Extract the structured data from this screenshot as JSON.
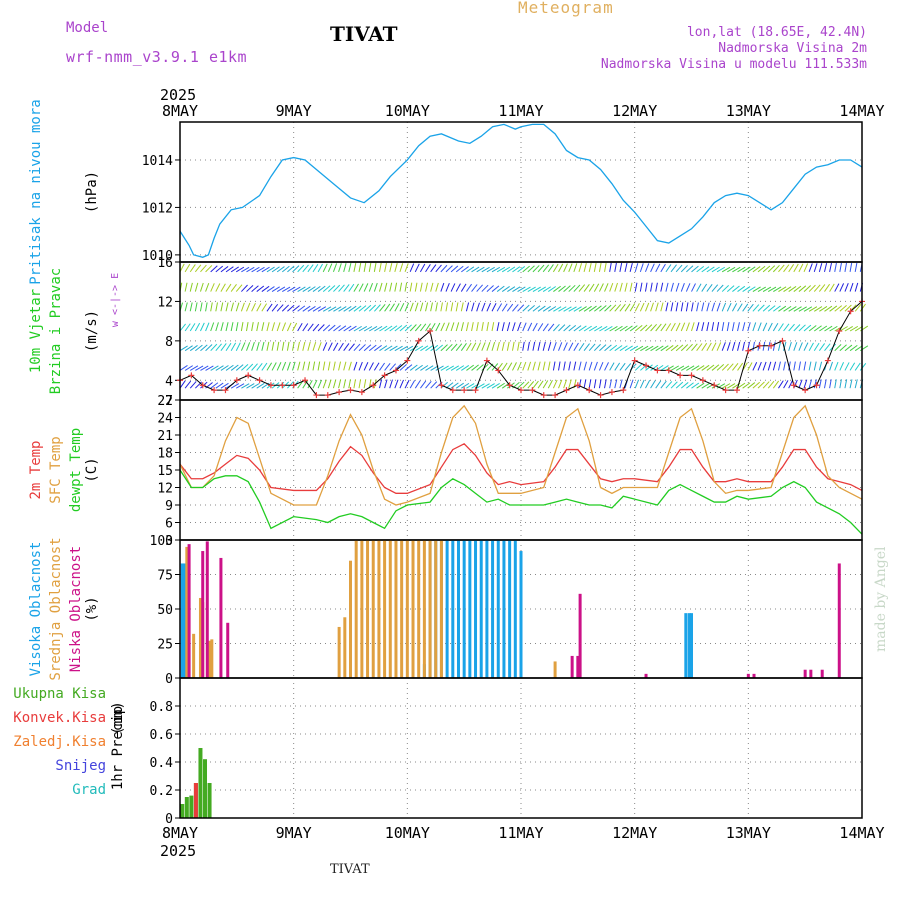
{
  "header": {
    "title": "TIVAT",
    "model_label": "Model",
    "model_value": "wrf-nmm_v3.9.1 e1km",
    "meteogram_label": "Meteogram",
    "location_line": "lon,lat (18.65E, 42.4N)",
    "elevation_line": "Nadmorska Visina 2m",
    "model_elevation_line": "Nadmorska Visina u modelu 111.533m",
    "footer_title": "TIVAT",
    "credit": "made by Angel"
  },
  "colors": {
    "pressure": "#1aa3e8",
    "temp_2m": "#e83c3c",
    "sfc_temp": "#e0a040",
    "dewpt": "#22cc22",
    "high_cloud": "#1aa3e8",
    "mid_cloud": "#e0a040",
    "low_cloud": "#cc1188",
    "total_precip": "#44aa22",
    "conv_precip": "#e83c3c",
    "freezing_precip": "#f08030",
    "snow": "#4444dd",
    "graupel": "#22bbbb",
    "wind_axis_label": "#aa44cc"
  },
  "chart_data": {
    "time_axis": {
      "year": "2025",
      "labels": [
        "8MAY",
        "9MAY",
        "10MAY",
        "11MAY",
        "12MAY",
        "13MAY",
        "14MAY"
      ],
      "day_start": 0,
      "day_end": 6
    },
    "panels": [
      {
        "id": "pressure",
        "type": "line",
        "ylabel_lines": [
          "Pritisak na nivou mora"
        ],
        "unit": "(hPa)",
        "ylim": [
          1009.7,
          1015.6
        ],
        "yticks": [
          1010,
          1012,
          1014
        ],
        "grid": true,
        "x": [
          0,
          0.08,
          0.12,
          0.2,
          0.25,
          0.3,
          0.35,
          0.45,
          0.55,
          0.7,
          0.8,
          0.9,
          1.0,
          1.1,
          1.2,
          1.35,
          1.5,
          1.62,
          1.75,
          1.85,
          2.0,
          2.1,
          2.2,
          2.3,
          2.45,
          2.55,
          2.65,
          2.75,
          2.85,
          2.95,
          3.0,
          3.1,
          3.2,
          3.3,
          3.4,
          3.5,
          3.6,
          3.7,
          3.8,
          3.9,
          4.0,
          4.1,
          4.2,
          4.3,
          4.4,
          4.5,
          4.6,
          4.7,
          4.8,
          4.9,
          5.0,
          5.1,
          5.2,
          5.3,
          5.4,
          5.5,
          5.6,
          5.7,
          5.8,
          5.9,
          6.0
        ],
        "values": [
          1011.0,
          1010.4,
          1010.0,
          1009.9,
          1010.0,
          1010.7,
          1011.3,
          1011.9,
          1012.0,
          1012.5,
          1013.3,
          1014.0,
          1014.1,
          1014.0,
          1013.6,
          1013.0,
          1012.4,
          1012.2,
          1012.7,
          1013.3,
          1014.0,
          1014.6,
          1015.0,
          1015.1,
          1014.8,
          1014.7,
          1015.0,
          1015.4,
          1015.5,
          1015.3,
          1015.4,
          1015.5,
          1015.5,
          1015.1,
          1014.4,
          1014.1,
          1014.0,
          1013.6,
          1013.0,
          1012.3,
          1011.8,
          1011.2,
          1010.6,
          1010.5,
          1010.8,
          1011.1,
          1011.6,
          1012.2,
          1012.5,
          1012.6,
          1012.5,
          1012.2,
          1011.9,
          1012.2,
          1012.8,
          1013.4,
          1013.7,
          1013.8,
          1014.0,
          1014.0,
          1013.7
        ]
      },
      {
        "id": "wind",
        "type": "line",
        "ylabel_lines": [
          "10m Vjetar",
          "Brzina i Pravac"
        ],
        "unit": "(m/s)",
        "compass": "w <-|-> E",
        "ylim": [
          2,
          16
        ],
        "yticks": [
          2,
          4,
          8,
          12,
          16
        ],
        "grid": true,
        "x": [
          0,
          0.1,
          0.2,
          0.3,
          0.4,
          0.5,
          0.6,
          0.7,
          0.8,
          0.9,
          1.0,
          1.1,
          1.2,
          1.3,
          1.4,
          1.5,
          1.6,
          1.7,
          1.8,
          1.9,
          2.0,
          2.1,
          2.2,
          2.3,
          2.4,
          2.5,
          2.6,
          2.7,
          2.8,
          2.9,
          3.0,
          3.1,
          3.2,
          3.3,
          3.4,
          3.5,
          3.6,
          3.7,
          3.8,
          3.9,
          4.0,
          4.1,
          4.2,
          4.3,
          4.4,
          4.5,
          4.6,
          4.7,
          4.8,
          4.9,
          5.0,
          5.1,
          5.2,
          5.3,
          5.4,
          5.5,
          5.6,
          5.7,
          5.8,
          5.9,
          6.0
        ],
        "values": [
          4.0,
          4.5,
          3.5,
          3.0,
          3.0,
          4.0,
          4.5,
          4.0,
          3.5,
          3.5,
          3.5,
          4.0,
          2.5,
          2.5,
          2.8,
          3.0,
          2.8,
          3.5,
          4.5,
          5.0,
          6.0,
          8.0,
          9.0,
          3.5,
          3.0,
          3.0,
          3.0,
          6.0,
          5.0,
          3.5,
          3.0,
          3.0,
          2.5,
          2.5,
          3.0,
          3.5,
          3.0,
          2.5,
          2.8,
          3.0,
          6.0,
          5.5,
          5.0,
          5.0,
          4.5,
          4.5,
          4.0,
          3.5,
          3.0,
          3.0,
          7.0,
          7.5,
          7.5,
          8.0,
          3.5,
          3.0,
          3.5,
          6.0,
          9.0,
          11.0,
          12.0
        ],
        "wind_arrows": true
      },
      {
        "id": "temperature",
        "type": "line",
        "ylabel_lines": [
          "2m Temp",
          "SFC Temp",
          "dewpt Temp"
        ],
        "unit": "(C)",
        "ylim": [
          3,
          27
        ],
        "yticks": [
          3,
          6,
          9,
          12,
          15,
          18,
          21,
          24,
          27
        ],
        "grid": true,
        "x": [
          0,
          0.1,
          0.2,
          0.3,
          0.4,
          0.5,
          0.6,
          0.7,
          0.8,
          1.0,
          1.2,
          1.3,
          1.4,
          1.5,
          1.6,
          1.7,
          1.8,
          1.9,
          2.0,
          2.2,
          2.3,
          2.4,
          2.5,
          2.6,
          2.7,
          2.8,
          2.9,
          3.0,
          3.2,
          3.3,
          3.4,
          3.5,
          3.6,
          3.7,
          3.8,
          3.9,
          4.0,
          4.2,
          4.3,
          4.4,
          4.5,
          4.6,
          4.7,
          4.8,
          4.9,
          5.0,
          5.2,
          5.3,
          5.4,
          5.5,
          5.6,
          5.7,
          5.8,
          5.9,
          6.0
        ],
        "series": [
          {
            "name": "2m Temp",
            "values": [
              16,
              13.5,
              13.5,
              14.5,
              16,
              17.5,
              17,
              15,
              12,
              11.5,
              11.5,
              13.5,
              16.5,
              19,
              17.5,
              14.5,
              12,
              11,
              11,
              12.5,
              15.5,
              18.5,
              19.5,
              17.5,
              14.5,
              12.5,
              13,
              12.5,
              13,
              15.5,
              18.5,
              18.5,
              16,
              13.5,
              13,
              13.5,
              13.5,
              13,
              15.5,
              18.5,
              18.5,
              15.5,
              13,
              13,
              13.5,
              13,
              13,
              15.5,
              18.5,
              18.5,
              15.5,
              13.5,
              13,
              12.5,
              11.5
            ]
          },
          {
            "name": "SFC Temp",
            "values": [
              16,
              12,
              12,
              14,
              20,
              24,
              23,
              17,
              11,
              9,
              9,
              14,
              20,
              24.5,
              21,
              15,
              10,
              9,
              9.5,
              11,
              18,
              24,
              26,
              23,
              16,
              11,
              11,
              11,
              12,
              18,
              24,
              25.5,
              20,
              12,
              11,
              12,
              12,
              12,
              18,
              24,
              25.5,
              20,
              13,
              11,
              11.5,
              11.5,
              12,
              18,
              24,
              26,
              21,
              14,
              12,
              11,
              10
            ]
          },
          {
            "name": "dewpt Temp",
            "values": [
              15,
              12,
              12,
              13.5,
              14,
              14,
              13,
              9.5,
              5,
              7,
              6.5,
              6,
              7,
              7.5,
              7,
              6,
              5,
              8,
              9,
              9.5,
              12,
              13.5,
              12.5,
              11,
              9.5,
              10,
              9,
              9,
              9,
              9.5,
              10,
              9.5,
              9,
              9,
              8.5,
              10.5,
              10,
              9,
              11.5,
              12.5,
              11.5,
              10.5,
              9.5,
              9.5,
              10.5,
              10,
              10.5,
              12,
              13,
              12,
              9.5,
              8.5,
              7.5,
              6,
              4
            ]
          }
        ]
      },
      {
        "id": "clouds",
        "type": "bar",
        "ylabel_lines": [
          "Visoka Oblacnost",
          "Srednja Oblacnost",
          "Niska Oblacnost"
        ],
        "unit": "(%)",
        "ylim": [
          0,
          100
        ],
        "yticks": [
          0,
          25,
          50,
          75,
          100
        ],
        "grid": true,
        "series": [
          {
            "name": "Visoka Oblacnost",
            "x": [
              0.02,
              0.04,
              2.15,
              2.2,
              2.25,
              2.3,
              2.35,
              2.4,
              2.45,
              2.5,
              2.55,
              2.6,
              2.65,
              2.7,
              2.75,
              2.8,
              2.85,
              2.9,
              2.95,
              3.0,
              4.45,
              4.48,
              4.5
            ],
            "values": [
              83,
              83,
              10,
              100,
              100,
              100,
              100,
              100,
              100,
              100,
              100,
              100,
              100,
              100,
              100,
              100,
              100,
              100,
              100,
              92,
              47,
              47,
              47
            ]
          },
          {
            "name": "Srednja Oblacnost",
            "x": [
              0.06,
              0.12,
              0.18,
              0.2,
              0.26,
              0.28,
              1.4,
              1.45,
              1.5,
              1.55,
              1.6,
              1.65,
              1.7,
              1.75,
              1.8,
              1.85,
              1.9,
              1.95,
              2.0,
              2.05,
              2.1,
              2.15,
              2.2,
              2.25,
              2.3,
              3.3
            ],
            "values": [
              95,
              32,
              58,
              55,
              27,
              28,
              37,
              44,
              85,
              100,
              100,
              100,
              100,
              100,
              100,
              100,
              100,
              100,
              100,
              100,
              100,
              100,
              100,
              100,
              100,
              12
            ]
          },
          {
            "name": "Niska Oblacnost",
            "x": [
              0.08,
              0.2,
              0.24,
              0.36,
              0.42,
              3.45,
              3.5,
              3.52,
              4.1,
              5.0,
              5.05,
              5.5,
              5.55,
              5.65,
              5.8
            ],
            "values": [
              97,
              92,
              99,
              87,
              40,
              16,
              16,
              61,
              3,
              3,
              3,
              6,
              6,
              6,
              83
            ]
          }
        ]
      },
      {
        "id": "precip",
        "type": "bar",
        "ylabel_lines": [
          "1hr Precip"
        ],
        "unit": "(mm)",
        "ylim": [
          0,
          1
        ],
        "yticks": [
          0,
          0.2,
          0.4,
          0.6,
          0.8
        ],
        "grid": true,
        "legend": [
          "Ukupna Kisa",
          "Konvek.Kisa",
          "Zaledj.Kisa",
          "Snijeg",
          "Grad"
        ],
        "series": [
          {
            "name": "Ukupna Kisa",
            "x": [
              0.02,
              0.06,
              0.1,
              0.14,
              0.18,
              0.22,
              0.26
            ],
            "values": [
              0.1,
              0.15,
              0.16,
              0.25,
              0.5,
              0.42,
              0.25
            ]
          },
          {
            "name": "Konvek.Kisa",
            "x": [
              0.14
            ],
            "values": [
              0.25
            ]
          }
        ]
      }
    ]
  }
}
